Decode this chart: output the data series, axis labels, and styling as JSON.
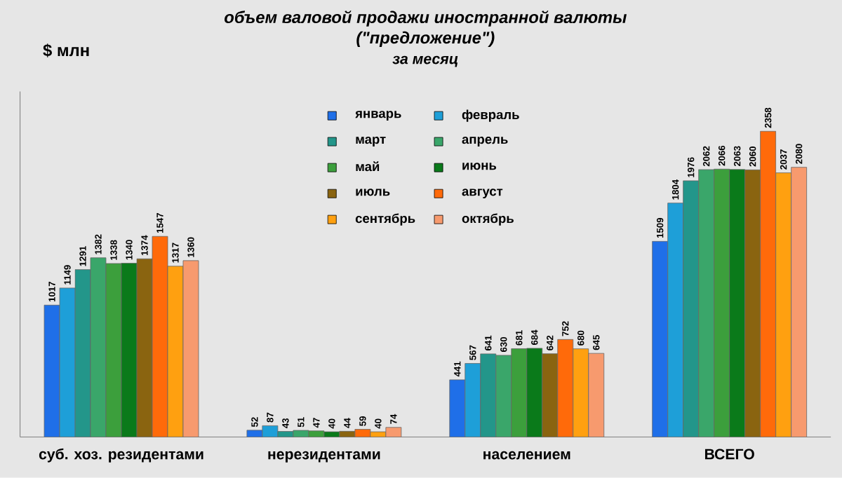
{
  "chart_data": {
    "type": "bar",
    "title": "объем валовой продажи иностранной валюты",
    "subtitle": "(\"предложение\")",
    "annotations": [
      "за месяц"
    ],
    "ylabel": "$ млн",
    "categories": [
      "суб. хоз. резидентами",
      "нерезидентами",
      "населением",
      "ВСЕГО"
    ],
    "series": [
      {
        "name": "январь",
        "color": "#1f6fe8",
        "values": [
          1017,
          52,
          441,
          1509
        ]
      },
      {
        "name": "февраль",
        "color": "#1e9fd8",
        "values": [
          1149,
          87,
          567,
          1804
        ]
      },
      {
        "name": "март",
        "color": "#23968a",
        "values": [
          1291,
          43,
          641,
          1976
        ]
      },
      {
        "name": "апрель",
        "color": "#3aa66a",
        "values": [
          1382,
          51,
          630,
          2062
        ]
      },
      {
        "name": "май",
        "color": "#3c9f3c",
        "values": [
          1338,
          47,
          681,
          2066
        ]
      },
      {
        "name": "июнь",
        "color": "#0a7a1a",
        "values": [
          1340,
          40,
          684,
          2063
        ]
      },
      {
        "name": "июль",
        "color": "#8a6410",
        "values": [
          1374,
          44,
          642,
          2060
        ]
      },
      {
        "name": "август",
        "color": "#ff6a0a",
        "values": [
          1547,
          59,
          752,
          2358
        ]
      },
      {
        "name": "сентябрь",
        "color": "#ffa010",
        "values": [
          1317,
          40,
          680,
          2037
        ]
      },
      {
        "name": "октябрь",
        "color": "#f79a6e",
        "values": [
          1360,
          74,
          645,
          2080
        ]
      }
    ],
    "data_labels": true,
    "legend": "top"
  }
}
